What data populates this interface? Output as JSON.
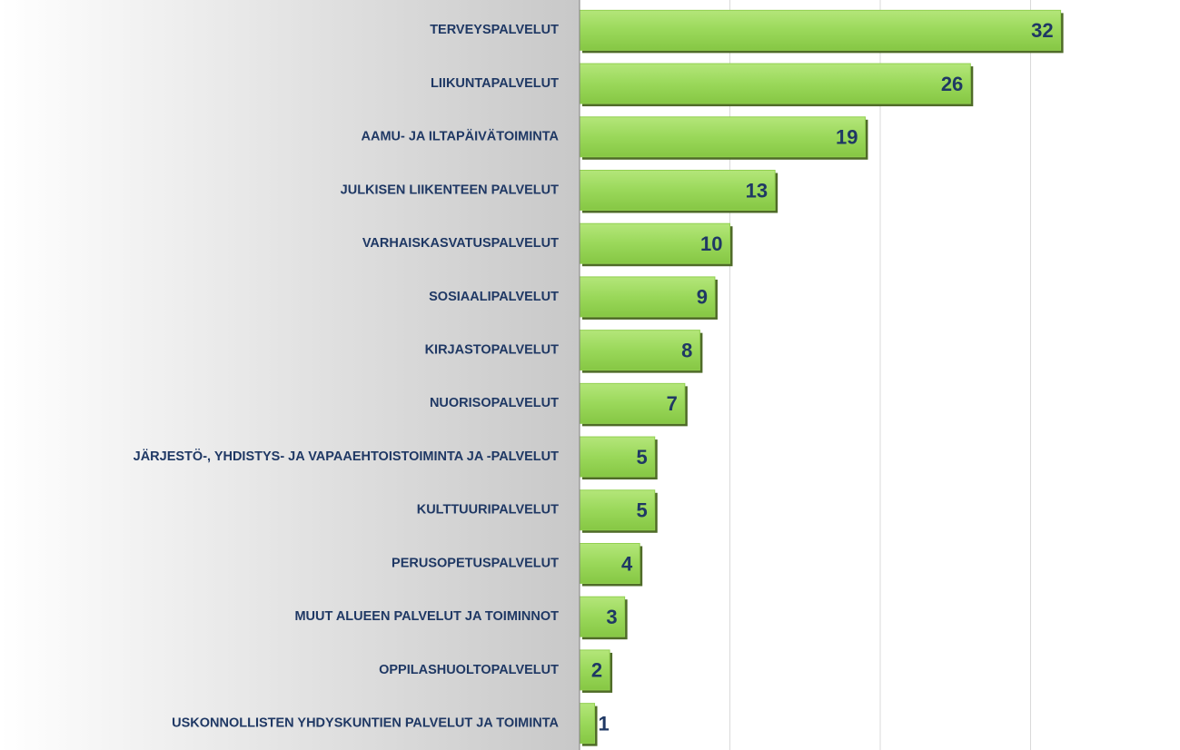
{
  "chart_data": {
    "type": "bar",
    "orientation": "horizontal",
    "categories": [
      "TERVEYSPALVELUT",
      "LIIKUNTAPALVELUT",
      "AAMU- JA ILTAPÄIVÄTOIMINTA",
      "JULKISEN LIIKENTEEN PALVELUT",
      "VARHAISKASVATUSPALVELUT",
      "SOSIAALIPALVELUT",
      "KIRJASTOPALVELUT",
      "NUORISOPALVELUT",
      "JÄRJESTÖ-, YHDISTYS- JA VAPAAEHTOISTOIMINTA JA -PALVELUT",
      "KULTTUURIPALVELUT",
      "PERUSOPETUSPALVELUT",
      "MUUT ALUEEN PALVELUT JA TOIMINNOT",
      "OPPILASHUOLTOPALVELUT",
      "USKONNOLLISTEN YHDYSKUNTIEN PALVELUT JA TOIMINTA"
    ],
    "values": [
      32,
      26,
      19,
      13,
      10,
      9,
      8,
      7,
      5,
      5,
      4,
      3,
      2,
      1
    ],
    "color": "#92d050",
    "xlim": [
      0,
      40
    ],
    "xticks": [
      0,
      10,
      20,
      30,
      40
    ],
    "grid": true
  }
}
